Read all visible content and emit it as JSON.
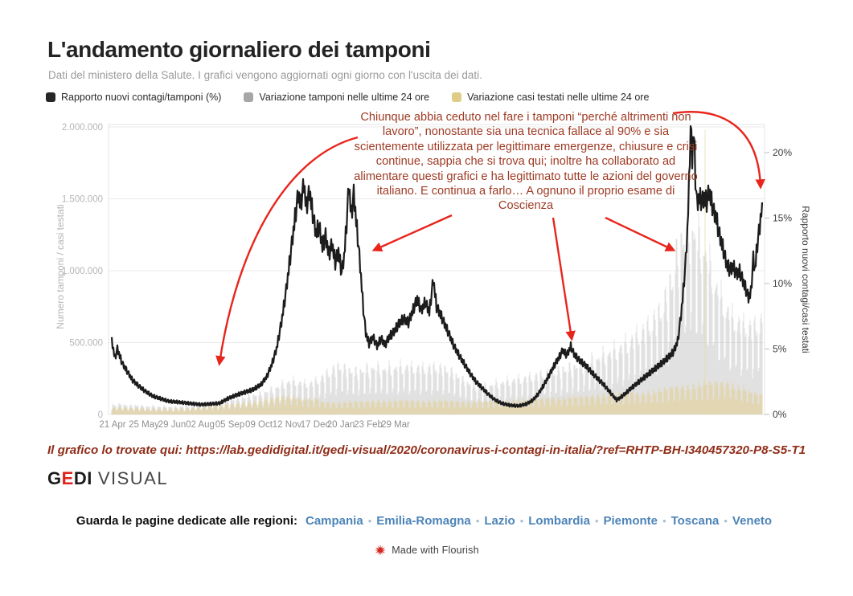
{
  "header": {
    "title": "L'andamento giornaliero dei tamponi",
    "subtitle": "Dati del ministero della Salute. I grafici vengono aggiornati ogni giorno con l'uscita dei dati."
  },
  "legend": {
    "items": [
      {
        "label": "Rapporto nuovi contagi/tamponi (%)",
        "color": "#262626"
      },
      {
        "label": "Variazione tamponi nelle ultime 24 ore",
        "color": "#a6a6a6"
      },
      {
        "label": "Variazione casi testati nelle ultime 24 ore",
        "color": "#dfcc87"
      }
    ]
  },
  "annotation": {
    "text": "Chiunque abbia ceduto nel fare i tamponi “perché altrimenti non lavoro”, nonostante sia una tecnica fallace al 90% e sia scientemente utilizzata per legittimare emergenze, chiusure e crisi continue, sappia che si trova qui; inoltre ha collaborato ad alimentare questi grafici e ha legittimato tutte le azioni del governo italiano. E continua a farlo… A ognuno il proprio esame di Coscienza",
    "text_color": "#9e3a23",
    "arrow_color": "#e8251d"
  },
  "footer": {
    "source_line": "Il grafico lo trovate qui: https://lab.gedidigital.it/gedi-visual/2020/coronavirus-i-contagi-in-italia/?ref=RHTP-BH-I340457320-P8-S5-T1",
    "logo": {
      "g": "G",
      "e": "E",
      "di": "DI",
      "visual": "VISUAL"
    },
    "regions_label": "Guarda le pagine dedicate alle regioni:",
    "regions": [
      "Campania",
      "Emilia-Romagna",
      "Lazio",
      "Lombardia",
      "Piemonte",
      "Toscana",
      "Veneto"
    ],
    "flourish": "Made with Flourish"
  },
  "chart_data": {
    "type": "line+bar",
    "title": "L'andamento giornaliero dei tamponi",
    "grid": true,
    "x_axis": {
      "tick_labels": [
        "21 Apr",
        "25 May",
        "29 Jun",
        "02 Aug",
        "05 Sep",
        "09 Oct",
        "12 Nov",
        "17 Dec",
        "20 Jan",
        "23 Feb",
        "29 Mar"
      ],
      "tick_days": [
        1,
        40,
        75,
        110,
        147,
        183,
        218,
        253,
        285,
        319,
        353
      ],
      "total_days": 810
    },
    "y_left": {
      "label": "Numero tamponi / casi testati",
      "tick_labels": [
        "0",
        "500.000",
        "1.000.000",
        "1.500.000",
        "2.000.000"
      ],
      "tick_values": [
        0,
        500000,
        1000000,
        1500000,
        2000000
      ],
      "range": [
        0,
        2000000
      ]
    },
    "y_right": {
      "label": "Rapporto nuovi contagi/casi testati",
      "tick_labels": [
        "0%",
        "5%",
        "10%",
        "15%",
        "20%"
      ],
      "tick_values": [
        0,
        5,
        10,
        15,
        20
      ],
      "range": [
        0,
        20
      ]
    },
    "series": [
      {
        "name": "Rapporto nuovi contagi/tamponi (%)",
        "type": "line",
        "axis": "right",
        "color": "#1c1c1c",
        "points": [
          [
            0,
            5.6
          ],
          [
            4,
            4.3
          ],
          [
            7,
            5.0
          ],
          [
            13,
            3.9
          ],
          [
            19,
            3.3
          ],
          [
            26,
            2.6
          ],
          [
            33,
            2.2
          ],
          [
            41,
            1.8
          ],
          [
            51,
            1.4
          ],
          [
            61,
            1.2
          ],
          [
            71,
            1.0
          ],
          [
            81,
            0.95
          ],
          [
            96,
            0.85
          ],
          [
            111,
            0.75
          ],
          [
            123,
            0.8
          ],
          [
            134,
            0.85
          ],
          [
            144,
            1.2
          ],
          [
            156,
            1.5
          ],
          [
            166,
            1.7
          ],
          [
            176,
            1.9
          ],
          [
            186,
            2.3
          ],
          [
            193,
            2.9
          ],
          [
            199,
            3.8
          ],
          [
            205,
            5.0
          ],
          [
            211,
            7.0
          ],
          [
            217,
            9.5
          ],
          [
            223,
            12.5
          ],
          [
            228,
            15.0
          ],
          [
            232,
            16.8
          ],
          [
            235,
            16.0
          ],
          [
            239,
            17.6
          ],
          [
            242,
            15.8
          ],
          [
            246,
            17.0
          ],
          [
            250,
            15.3
          ],
          [
            254,
            13.8
          ],
          [
            258,
            14.4
          ],
          [
            262,
            12.8
          ],
          [
            266,
            13.6
          ],
          [
            270,
            12.2
          ],
          [
            274,
            13.0
          ],
          [
            278,
            11.6
          ],
          [
            282,
            12.4
          ],
          [
            286,
            10.8
          ],
          [
            289,
            12.0
          ],
          [
            292,
            14.5
          ],
          [
            295,
            17.5
          ],
          [
            298,
            15.2
          ],
          [
            301,
            16.8
          ],
          [
            304,
            14.8
          ],
          [
            307,
            12.8
          ],
          [
            310,
            10.5
          ],
          [
            313,
            8.0
          ],
          [
            316,
            6.2
          ],
          [
            320,
            5.4
          ],
          [
            325,
            5.9
          ],
          [
            330,
            5.2
          ],
          [
            335,
            5.8
          ],
          [
            340,
            5.3
          ],
          [
            345,
            5.9
          ],
          [
            351,
            6.3
          ],
          [
            357,
            6.9
          ],
          [
            363,
            7.3
          ],
          [
            369,
            7.0
          ],
          [
            375,
            8.0
          ],
          [
            380,
            8.8
          ],
          [
            385,
            7.9
          ],
          [
            390,
            8.6
          ],
          [
            395,
            7.8
          ],
          [
            400,
            10.3
          ],
          [
            404,
            8.2
          ],
          [
            409,
            7.6
          ],
          [
            414,
            6.9
          ],
          [
            419,
            6.2
          ],
          [
            425,
            5.3
          ],
          [
            432,
            4.5
          ],
          [
            439,
            3.8
          ],
          [
            446,
            3.1
          ],
          [
            453,
            2.5
          ],
          [
            461,
            2.0
          ],
          [
            469,
            1.5
          ],
          [
            477,
            1.1
          ],
          [
            485,
            0.85
          ],
          [
            495,
            0.7
          ],
          [
            506,
            0.65
          ],
          [
            516,
            0.8
          ],
          [
            524,
            1.1
          ],
          [
            531,
            1.6
          ],
          [
            538,
            2.3
          ],
          [
            545,
            3.1
          ],
          [
            551,
            3.8
          ],
          [
            556,
            4.3
          ],
          [
            561,
            4.9
          ],
          [
            566,
            4.5
          ],
          [
            571,
            5.2
          ],
          [
            575,
            4.6
          ],
          [
            579,
            4.3
          ],
          [
            584,
            4.0
          ],
          [
            590,
            3.7
          ],
          [
            597,
            3.2
          ],
          [
            605,
            2.7
          ],
          [
            613,
            2.2
          ],
          [
            621,
            1.6
          ],
          [
            628,
            1.1
          ],
          [
            633,
            1.3
          ],
          [
            639,
            1.6
          ],
          [
            646,
            2.0
          ],
          [
            654,
            2.4
          ],
          [
            662,
            2.8
          ],
          [
            670,
            3.2
          ],
          [
            678,
            3.6
          ],
          [
            686,
            4.0
          ],
          [
            693,
            4.4
          ],
          [
            699,
            4.8
          ],
          [
            704,
            5.6
          ],
          [
            708,
            7.5
          ],
          [
            711,
            9.5
          ],
          [
            714,
            11.8
          ],
          [
            716,
            14.0
          ],
          [
            718,
            17.5
          ],
          [
            720,
            22.2
          ],
          [
            722,
            19.5
          ],
          [
            724,
            21.8
          ],
          [
            726,
            18.0
          ],
          [
            728,
            16.0
          ],
          [
            731,
            16.6
          ],
          [
            734,
            16.2
          ],
          [
            737,
            16.5
          ],
          [
            740,
            16.2
          ],
          [
            743,
            17.0
          ],
          [
            746,
            16.2
          ],
          [
            749,
            15.4
          ],
          [
            752,
            15.0
          ],
          [
            755,
            13.9
          ],
          [
            758,
            13.2
          ],
          [
            761,
            12.5
          ],
          [
            765,
            11.4
          ],
          [
            769,
            11.0
          ],
          [
            773,
            11.3
          ],
          [
            777,
            10.7
          ],
          [
            781,
            10.9
          ],
          [
            785,
            10.2
          ],
          [
            789,
            9.5
          ],
          [
            792,
            8.9
          ],
          [
            795,
            9.3
          ],
          [
            798,
            11.9
          ],
          [
            800,
            11.0
          ],
          [
            803,
            13.0
          ],
          [
            806,
            14.3
          ],
          [
            809,
            16.2
          ]
        ]
      },
      {
        "name": "Variazione tamponi nelle ultime 24 ore",
        "type": "bar",
        "axis": "left",
        "color": "#c2c2c2",
        "weekly_peaks_thousands": [
          72,
          78,
          70,
          66,
          68,
          64,
          60,
          62,
          58,
          60,
          56,
          57,
          60,
          64,
          70,
          76,
          84,
          90,
          96,
          102,
          108,
          114,
          120,
          127,
          135,
          145,
          156,
          170,
          185,
          205,
          225,
          245,
          250,
          240,
          230,
          235,
          255,
          280,
          310,
          340,
          360,
          345,
          330,
          320,
          330,
          340,
          350,
          345,
          340,
          345,
          350,
          355,
          360,
          355,
          350,
          345,
          350,
          355,
          350,
          340,
          320,
          290,
          260,
          235,
          215,
          205,
          210,
          220,
          230,
          240,
          250,
          258,
          265,
          272,
          280,
          290,
          300,
          310,
          320,
          330,
          340,
          350,
          362,
          375,
          390,
          405,
          420,
          440,
          460,
          480,
          505,
          530,
          560,
          590,
          625,
          665,
          710,
          770,
          860,
          1000,
          1180,
          1320,
          1400,
          1370,
          1300,
          1210,
          1090,
          960,
          860,
          780,
          720,
          690,
          670,
          655,
          665,
          685
        ]
      },
      {
        "name": "Variazione casi testati nelle ultime 24 ore",
        "type": "bar",
        "axis": "left",
        "color": "#e2cf92",
        "weekly_peaks_thousands": [
          48,
          52,
          50,
          46,
          48,
          45,
          42,
          43,
          41,
          42,
          40,
          41,
          43,
          45,
          48,
          52,
          58,
          62,
          66,
          70,
          74,
          78,
          82,
          86,
          90,
          96,
          102,
          110,
          120,
          130,
          138,
          134,
          130,
          122,
          115,
          110,
          118,
          95,
          90,
          88,
          90,
          92,
          95,
          97,
          95,
          98,
          100,
          103,
          101,
          100,
          102,
          105,
          107,
          104,
          100,
          98,
          100,
          102,
          104,
          103,
          101,
          98,
          96,
          95,
          97,
          99,
          101,
          100,
          98,
          97,
          99,
          102,
          105,
          108,
          111,
          114,
          117,
          120,
          123,
          121,
          124,
          127,
          130,
          133,
          136,
          139,
          142,
          145,
          149,
          153,
          158,
          163,
          168,
          155,
          158,
          162,
          170,
          180,
          190,
          200,
          205,
          210,
          205,
          210,
          220,
          230,
          235,
          240,
          238,
          232,
          215,
          200,
          190,
          170,
          158,
          150
        ],
        "anomaly_spike": {
          "day": 738,
          "value": 1980000
        }
      }
    ],
    "weekday_pattern_gray": [
      0.48,
      0.9,
      1.0,
      0.95,
      0.88,
      0.82,
      0.42
    ],
    "weekday_pattern_yellow": [
      0.5,
      0.88,
      1.0,
      0.94,
      0.9,
      0.84,
      0.45
    ]
  }
}
